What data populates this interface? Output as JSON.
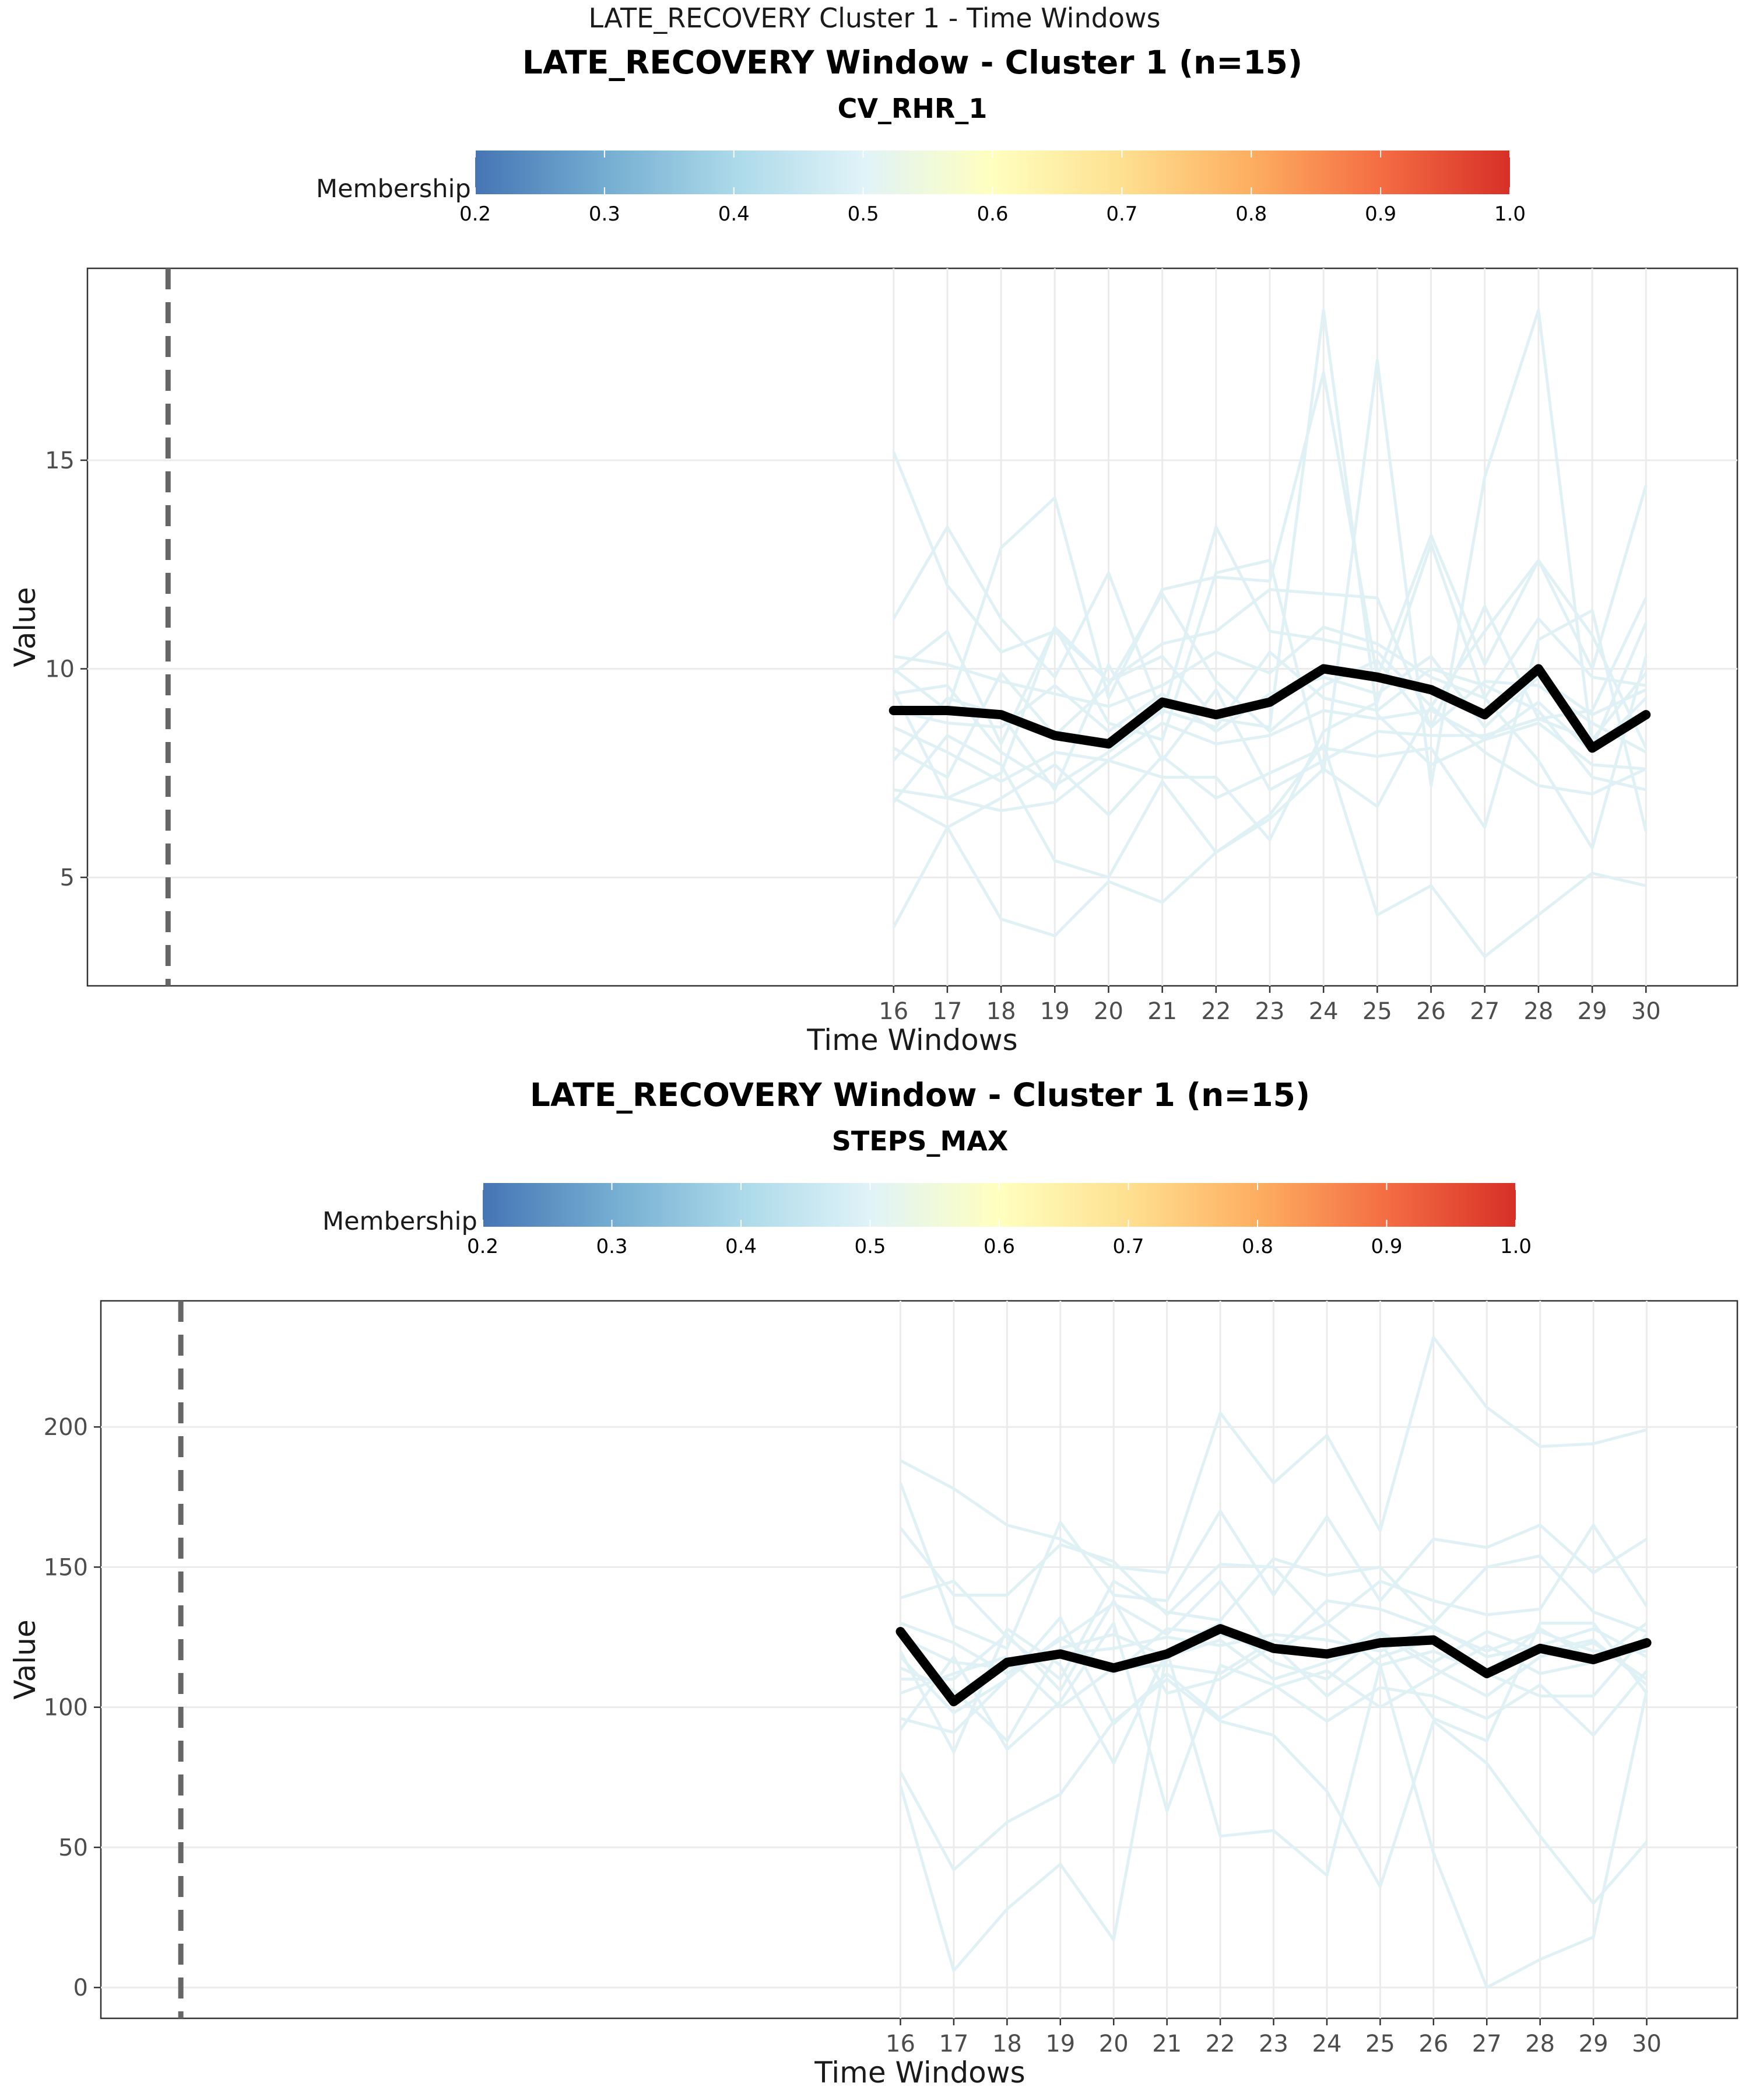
{
  "page_title": "LATE_RECOVERY Cluster 1 - Time Windows",
  "colors": {
    "mean_line": "#000000",
    "member_lines": "#dff1f5",
    "event_line": "#666666",
    "grid": "#ebebeb",
    "colorbar_stops": [
      "#4575b4",
      "#74add1",
      "#abd9e9",
      "#e0f3f8",
      "#ffffbf",
      "#fee090",
      "#fdae61",
      "#f46d43",
      "#d73027"
    ]
  },
  "chart_data": [
    {
      "type": "line",
      "title": "LATE_RECOVERY Window - Cluster 1 (n=15)",
      "subtitle": "CV_RHR_1",
      "xlabel": "Time Windows",
      "ylabel": "Value",
      "legend": {
        "title": "Membership",
        "position": "top",
        "ticks": [
          "0.2",
          "0.3",
          "0.4",
          "0.5",
          "0.6",
          "0.7",
          "0.8",
          "0.9",
          "1.0"
        ],
        "range": [
          0.2,
          1.0
        ]
      },
      "xlim": [
        1,
        31.7
      ],
      "ylim": [
        2.4,
        19.6
      ],
      "yticks": [
        5,
        10,
        15
      ],
      "x": [
        16,
        17,
        18,
        19,
        20,
        21,
        22,
        23,
        24,
        25,
        26,
        27,
        28,
        29,
        30
      ],
      "vline_x": 2.5,
      "grid": true,
      "mean_series": [
        9.0,
        9.0,
        8.9,
        8.4,
        8.2,
        9.2,
        8.9,
        9.2,
        10.0,
        9.8,
        9.5,
        8.9,
        10.0,
        8.1,
        8.9
      ],
      "member_series": [
        [
          15.2,
          12.0,
          10.4,
          10.9,
          9.7,
          10.3,
          8.8,
          8.6,
          18.6,
          8.9,
          7.7,
          8.3,
          9.2,
          8.0,
          9.3
        ],
        [
          11.2,
          13.4,
          11.2,
          9.8,
          12.3,
          8.9,
          13.4,
          10.9,
          10.7,
          10.4,
          9.1,
          10.9,
          12.6,
          10.8,
          8.1
        ],
        [
          10.0,
          9.0,
          12.9,
          14.1,
          9.3,
          11.9,
          12.2,
          12.1,
          17.1,
          9.8,
          13.2,
          10.1,
          12.6,
          10.0,
          14.4
        ],
        [
          9.9,
          10.9,
          8.2,
          11.0,
          9.7,
          10.6,
          10.9,
          11.9,
          11.8,
          11.7,
          8.6,
          11.5,
          8.8,
          9.0,
          11.7
        ],
        [
          9.5,
          6.9,
          7.5,
          11.0,
          8.7,
          8.3,
          12.3,
          12.6,
          7.5,
          17.4,
          7.2,
          14.6,
          18.6,
          8.1,
          11.1
        ],
        [
          8.1,
          7.4,
          9.9,
          8.4,
          9.6,
          11.8,
          9.7,
          8.5,
          9.6,
          10.2,
          8.6,
          9.7,
          9.6,
          8.7,
          8.0
        ],
        [
          7.8,
          9.3,
          8.9,
          7.1,
          10.1,
          7.8,
          9.5,
          7.1,
          7.8,
          8.5,
          8.4,
          8.4,
          8.8,
          8.3,
          9.9
        ],
        [
          7.1,
          6.9,
          6.6,
          6.8,
          7.8,
          7.4,
          7.4,
          5.9,
          8.5,
          9.2,
          13.0,
          9.3,
          7.8,
          5.7,
          10.3
        ],
        [
          6.9,
          6.2,
          6.9,
          7.7,
          6.5,
          7.9,
          6.9,
          7.5,
          8.1,
          7.9,
          8.1,
          6.2,
          10.7,
          11.4,
          6.1
        ],
        [
          6.8,
          8.4,
          7.7,
          5.4,
          5.0,
          7.3,
          5.6,
          6.5,
          8.2,
          4.1,
          4.8,
          3.1,
          4.1,
          5.1,
          4.8
        ],
        [
          3.8,
          6.2,
          4.0,
          3.6,
          4.9,
          4.4,
          5.6,
          6.4,
          7.6,
          6.7,
          9.1,
          8.0,
          7.2,
          7.0,
          7.6
        ],
        [
          9.0,
          8.7,
          8.6,
          9.6,
          8.5,
          9.4,
          8.5,
          9.4,
          9.8,
          9.4,
          10.3,
          8.6,
          9.8,
          8.9,
          9.5
        ],
        [
          8.6,
          8.0,
          7.3,
          8.0,
          7.8,
          8.7,
          8.2,
          8.4,
          9.0,
          8.8,
          9.0,
          8.3,
          8.7,
          7.7,
          7.6
        ],
        [
          10.3,
          10.1,
          9.7,
          9.4,
          9.1,
          9.6,
          10.4,
          9.9,
          11.0,
          10.6,
          9.8,
          9.3,
          11.2,
          9.8,
          9.6
        ],
        [
          9.4,
          9.6,
          8.0,
          7.2,
          8.0,
          9.0,
          8.6,
          10.4,
          9.3,
          9.0,
          10.0,
          9.6,
          9.0,
          7.4,
          7.1
        ]
      ]
    },
    {
      "type": "line",
      "title": "LATE_RECOVERY Window - Cluster 1 (n=15)",
      "subtitle": "STEPS_MAX",
      "xlabel": "Time Windows",
      "ylabel": "Value",
      "legend": {
        "title": "Membership",
        "position": "top",
        "ticks": [
          "0.2",
          "0.3",
          "0.4",
          "0.5",
          "0.6",
          "0.7",
          "0.8",
          "0.9",
          "1.0"
        ],
        "range": [
          0.2,
          1.0
        ]
      },
      "xlim": [
        1,
        31.7
      ],
      "ylim": [
        -11,
        245
      ],
      "yticks": [
        0,
        50,
        100,
        150,
        200
      ],
      "x": [
        16,
        17,
        18,
        19,
        20,
        21,
        22,
        23,
        24,
        25,
        26,
        27,
        28,
        29,
        30
      ],
      "vline_x": 2.5,
      "grid": true,
      "mean_series": [
        127,
        102,
        116,
        119,
        114,
        119,
        128,
        121,
        119,
        123,
        124,
        112,
        121,
        117,
        123
      ],
      "member_series": [
        [
          188,
          178,
          165,
          160,
          150,
          148,
          205,
          180,
          197,
          163,
          232,
          207,
          193,
          194,
          199
        ],
        [
          180,
          129,
          121,
          166,
          140,
          138,
          170,
          140,
          168,
          138,
          160,
          157,
          165,
          148,
          160
        ],
        [
          164,
          140,
          140,
          158,
          152,
          133,
          151,
          150,
          130,
          145,
          138,
          133,
          135,
          165,
          136
        ],
        [
          139,
          145,
          125,
          110,
          145,
          134,
          131,
          153,
          147,
          150,
          130,
          150,
          154,
          134,
          127
        ],
        [
          130,
          123,
          112,
          124,
          137,
          126,
          145,
          120,
          138,
          135,
          128,
          120,
          127,
          120,
          120
        ],
        [
          125,
          116,
          114,
          119,
          121,
          125,
          122,
          126,
          124,
          120,
          129,
          118,
          122,
          128,
          118
        ],
        [
          120,
          84,
          128,
          115,
          80,
          120,
          130,
          116,
          110,
          126,
          114,
          104,
          118,
          123,
          110
        ],
        [
          114,
          106,
          88,
          121,
          126,
          118,
          124,
          110,
          116,
          123,
          96,
          88,
          130,
          130,
          105
        ],
        [
          110,
          110,
          126,
          106,
          138,
          105,
          110,
          122,
          104,
          118,
          124,
          112,
          104,
          104,
          126
        ],
        [
          96,
          91,
          110,
          132,
          94,
          112,
          96,
          107,
          113,
          100,
          111,
          122,
          112,
          116,
          130
        ],
        [
          92,
          118,
          85,
          102,
          130,
          63,
          115,
          108,
          95,
          107,
          104,
          96,
          108,
          90,
          113
        ],
        [
          77,
          42,
          59,
          69,
          95,
          110,
          95,
          90,
          70,
          36,
          95,
          80,
          54,
          30,
          52
        ],
        [
          72,
          6,
          28,
          44,
          17,
          120,
          54,
          56,
          40,
          115,
          48,
          0,
          10,
          18,
          106
        ],
        [
          118,
          98,
          110,
          125,
          112,
          128,
          126,
          120,
          130,
          115,
          120,
          112,
          128,
          117,
          124
        ],
        [
          105,
          112,
          118,
          100,
          114,
          115,
          112,
          124,
          118,
          127,
          116,
          127,
          120,
          124,
          108
        ]
      ]
    }
  ]
}
